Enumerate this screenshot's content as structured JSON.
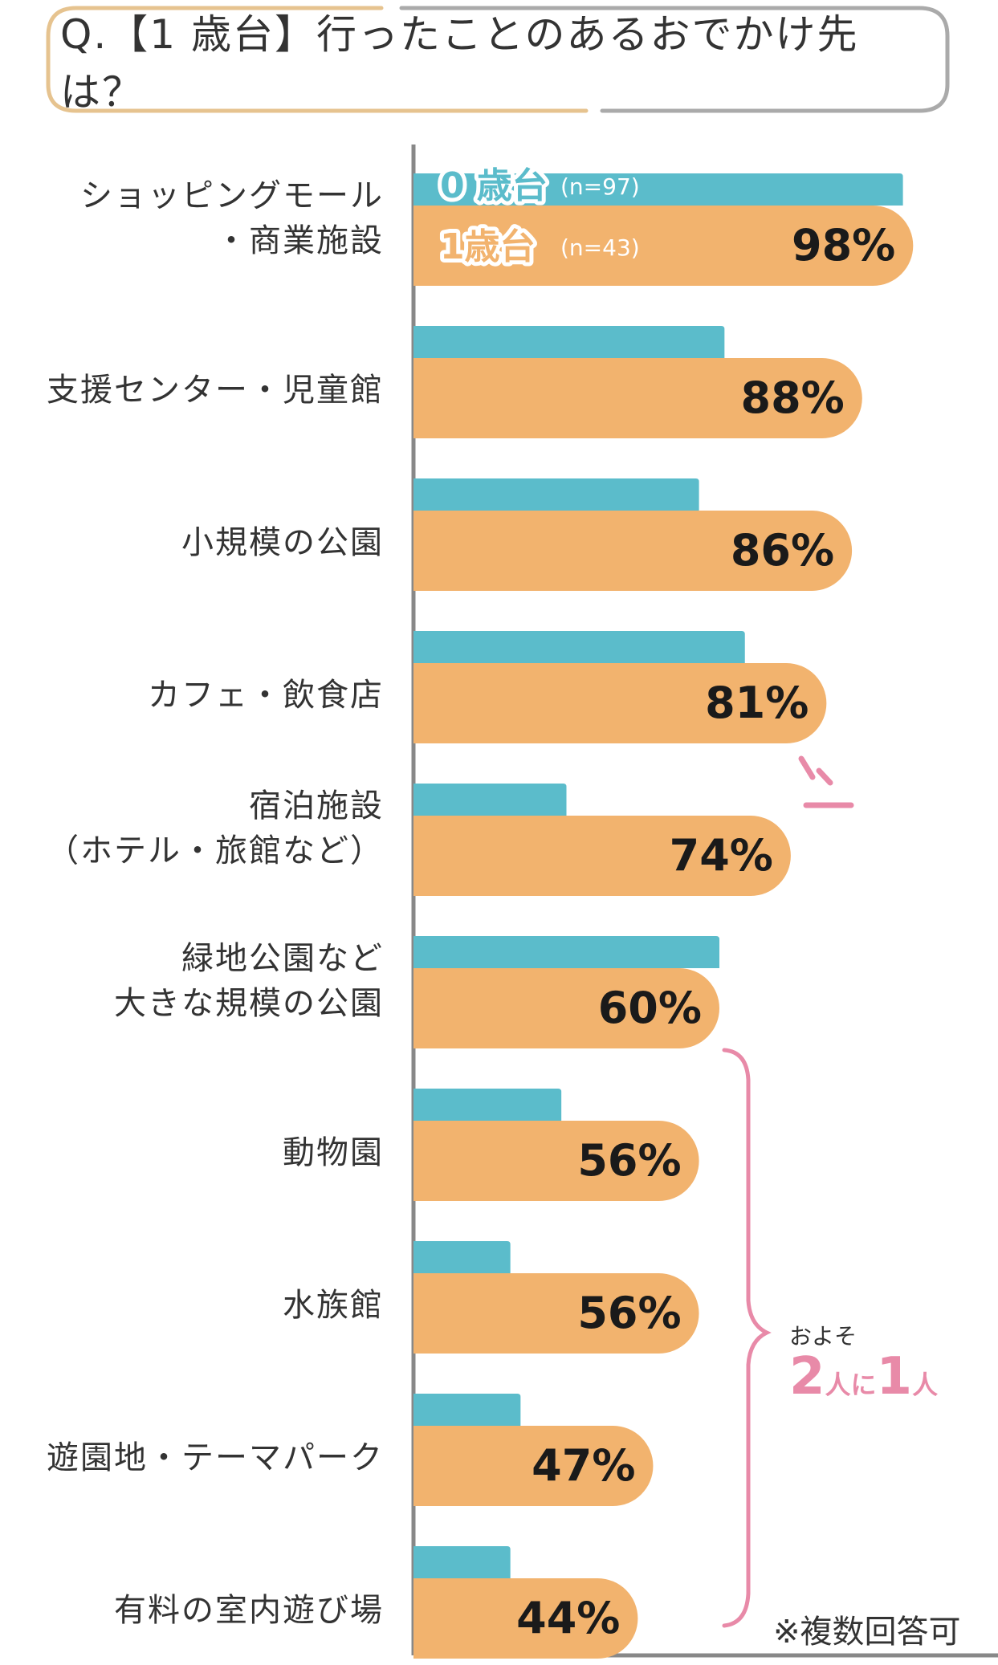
{
  "title": "Q.【1 歳台】行ったことのあるおでかけ先は？",
  "note": "※複数回答可",
  "annotation": {
    "small": "およそ",
    "num1": "2",
    "word1": "人に",
    "num2": "1",
    "word2": "人"
  },
  "colors": {
    "age0": "#5bbccb",
    "age1": "#f2b36e",
    "accent": "#e88aa8",
    "axis": "#888888",
    "frame_left": "#e6c38f",
    "frame_right": "#aaaaaa"
  },
  "chart_data": {
    "type": "bar",
    "orientation": "horizontal",
    "categories": [
      "ショッピングモール\n・商業施設",
      "支援センター・児童館",
      "小規模の公園",
      "カフェ・飲食店",
      "宿泊施設\n（ホテル・旅館など）",
      "緑地公園など\n大きな規模の公園",
      "動物園",
      "水族館",
      "遊園地・テーマパーク",
      "有料の室内遊び場"
    ],
    "series": [
      {
        "name": "0 歳台",
        "n": "(n=97)",
        "values": [
          96,
          61,
          56,
          65,
          30,
          60,
          29,
          19,
          21,
          19
        ]
      },
      {
        "name": "1歳台",
        "n": "(n=43)",
        "values": [
          98,
          88,
          86,
          81,
          74,
          60,
          56,
          56,
          47,
          44
        ],
        "labels": [
          "98%",
          "88%",
          "86%",
          "81%",
          "74%",
          "60%",
          "56%",
          "56%",
          "47%",
          "44%"
        ]
      }
    ],
    "xlim": [
      0,
      100
    ],
    "legend": "inline on first bars"
  }
}
